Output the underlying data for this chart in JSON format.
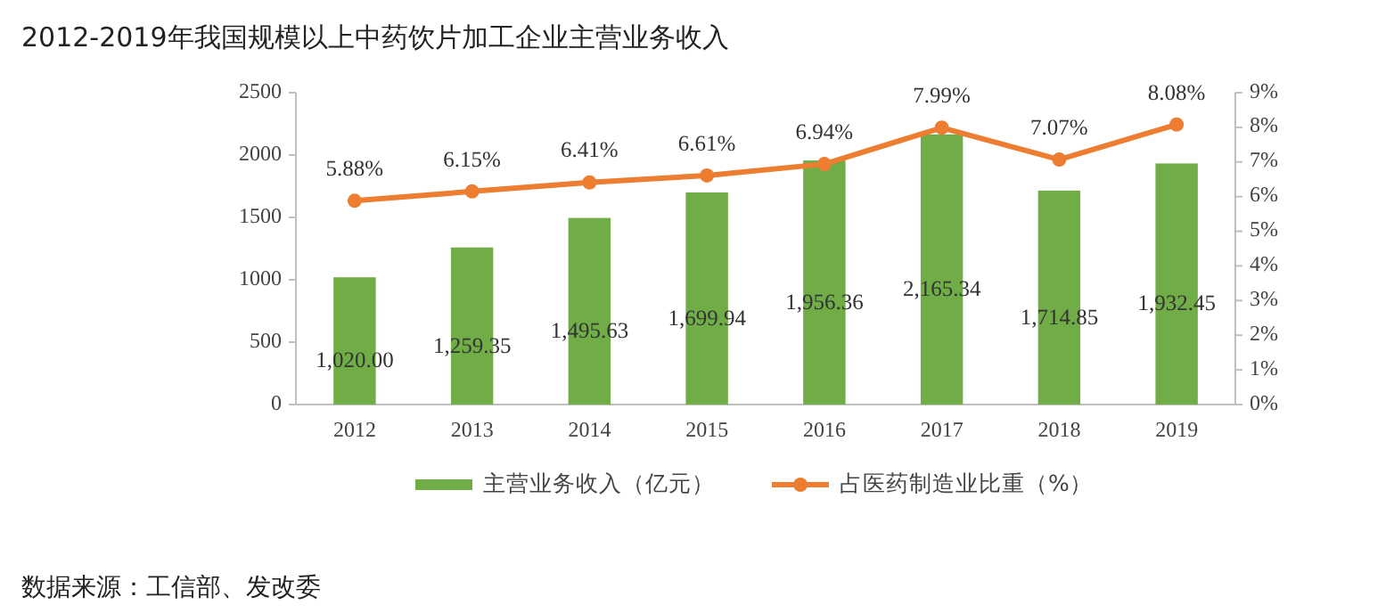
{
  "chart_data": {
    "type": "bar",
    "title": "2012-2019年我国规模以上中药饮片加工企业主营业务收入",
    "categories": [
      "2012",
      "2013",
      "2014",
      "2015",
      "2016",
      "2017",
      "2018",
      "2019"
    ],
    "series": [
      {
        "name": "主营业务收入（亿元）",
        "color": "#70ad47",
        "values": [
          1020.0,
          1259.35,
          1495.63,
          1699.94,
          1956.36,
          2165.34,
          1714.85,
          1932.45
        ],
        "value_labels": [
          "1,020.00",
          "1,259.35",
          "1,495.63",
          "1,699.94",
          "1,956.36",
          "2,165.34",
          "1,714.85",
          "1,932.45"
        ]
      },
      {
        "name": "占医药制造业比重（%）",
        "type": "line",
        "axis": "y2",
        "color": "#ed7d31",
        "marker": "circle",
        "values": [
          5.88,
          6.15,
          6.41,
          6.61,
          6.94,
          7.99,
          7.07,
          8.08
        ],
        "value_labels": [
          "5.88%",
          "6.15%",
          "6.41%",
          "6.61%",
          "6.94%",
          "7.99%",
          "7.07%",
          "8.08%"
        ]
      }
    ],
    "ylim": [
      0,
      2500
    ],
    "yticks": [
      0,
      500,
      1000,
      1500,
      2000,
      2500
    ],
    "y2lim": [
      0,
      9
    ],
    "y2ticks": [
      {
        "value": 0,
        "label": "0%"
      },
      {
        "value": 1,
        "label": "1%"
      },
      {
        "value": 2,
        "label": "2%"
      },
      {
        "value": 3,
        "label": "3%"
      },
      {
        "value": 4,
        "label": "4%"
      },
      {
        "value": 5,
        "label": "5%"
      },
      {
        "value": 6,
        "label": "6%"
      },
      {
        "value": 7,
        "label": "7%"
      },
      {
        "value": 8,
        "label": "8%"
      },
      {
        "value": 9,
        "label": "9%"
      }
    ],
    "legend": "bottom",
    "annotations": [
      "数据来源：工信部、发改委"
    ]
  }
}
